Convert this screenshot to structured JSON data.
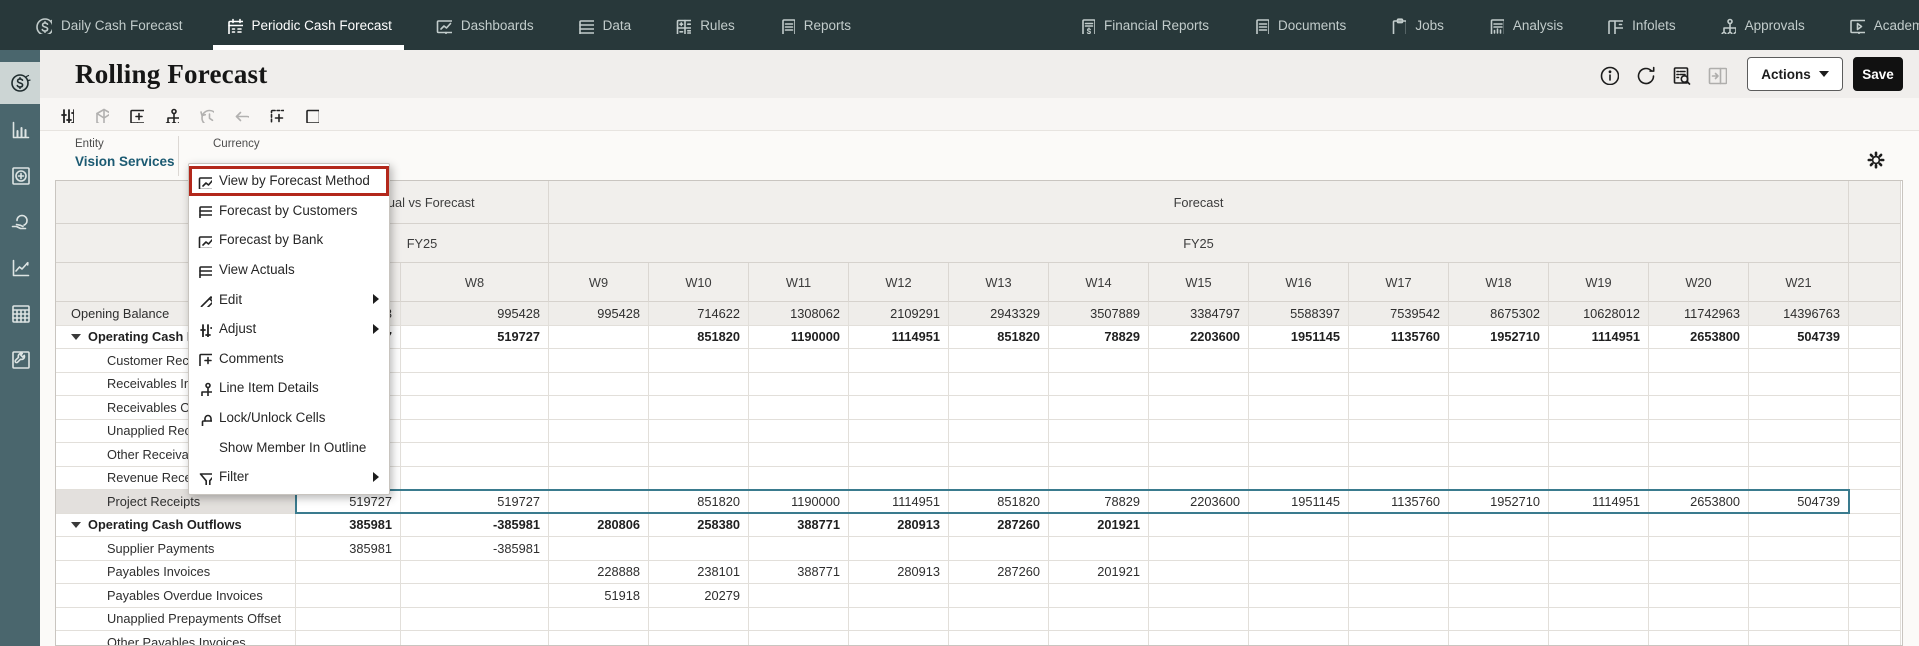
{
  "nav": {
    "items": [
      {
        "label": "Daily Cash Forecast",
        "icon": "coin",
        "active": false
      },
      {
        "label": "Periodic Cash Forecast",
        "icon": "calendar",
        "active": true
      },
      {
        "label": "Dashboards",
        "icon": "monitor",
        "active": false
      },
      {
        "label": "Data",
        "icon": "table",
        "active": false
      },
      {
        "label": "Rules",
        "icon": "gridcalc",
        "active": false
      },
      {
        "label": "Reports",
        "icon": "doc",
        "active": false
      },
      {
        "label": "Financial Reports",
        "icon": "docdollar",
        "active": false,
        "gap": true
      },
      {
        "label": "Documents",
        "icon": "doc",
        "active": false
      },
      {
        "label": "Jobs",
        "icon": "clipboard",
        "active": false
      },
      {
        "label": "Analysis",
        "icon": "docchart",
        "active": false
      },
      {
        "label": "Infolets",
        "icon": "infolet",
        "active": false
      },
      {
        "label": "Approvals",
        "icon": "org",
        "active": false
      },
      {
        "label": "Academy",
        "icon": "academy",
        "active": false
      }
    ]
  },
  "sidebar": {
    "items": [
      {
        "name": "cash-forecast",
        "icon": "coin",
        "active": true
      },
      {
        "name": "charts",
        "icon": "chartbars",
        "active": false
      },
      {
        "name": "add-panel",
        "icon": "circleplus",
        "active": false
      },
      {
        "name": "funding",
        "icon": "handflask",
        "active": false
      },
      {
        "name": "analytics",
        "icon": "trend",
        "active": false
      },
      {
        "name": "data-grid",
        "icon": "gridtable",
        "active": false
      },
      {
        "name": "tools",
        "icon": "wrench",
        "active": false
      }
    ]
  },
  "header": {
    "title": "Rolling Forecast",
    "actions_label": "Actions",
    "save_label": "Save",
    "icons": [
      {
        "name": "info-icon",
        "icon": "info",
        "disabled": false
      },
      {
        "name": "refresh-icon",
        "icon": "refresh",
        "disabled": false
      },
      {
        "name": "job-console-icon",
        "icon": "docsearch",
        "disabled": false
      },
      {
        "name": "open-panel-icon",
        "icon": "panel",
        "disabled": true
      }
    ]
  },
  "toolbar": {
    "buttons": [
      {
        "name": "adjust",
        "icon": "sliders",
        "disabled": false
      },
      {
        "name": "cube-refresh",
        "icon": "cube",
        "disabled": true
      },
      {
        "name": "add-comment",
        "icon": "commentplus",
        "disabled": false
      },
      {
        "name": "line-item-details",
        "icon": "org",
        "disabled": false
      },
      {
        "name": "history",
        "icon": "history",
        "disabled": true
      },
      {
        "name": "undo",
        "icon": "undo",
        "disabled": true
      },
      {
        "name": "freeze-grid",
        "icon": "gridplus",
        "disabled": false
      },
      {
        "name": "layout",
        "icon": "layout",
        "disabled": false
      }
    ]
  },
  "pov": {
    "entity_label": "Entity",
    "entity_value": "Vision Services",
    "currency_label": "Currency"
  },
  "context_menu": {
    "items": [
      {
        "label": "View by Forecast Method",
        "icon": "monitor",
        "submenu": false,
        "highlighted": true
      },
      {
        "label": "Forecast by Customers",
        "icon": "table",
        "submenu": false
      },
      {
        "label": "Forecast by Bank",
        "icon": "monitor",
        "submenu": false
      },
      {
        "label": "View Actuals",
        "icon": "table",
        "submenu": false
      },
      {
        "label": "Edit",
        "icon": "pencil",
        "submenu": true
      },
      {
        "label": "Adjust",
        "icon": "sliders",
        "submenu": true
      },
      {
        "label": "Comments",
        "icon": "commentplus",
        "submenu": false
      },
      {
        "label": "Line Item Details",
        "icon": "org",
        "submenu": false
      },
      {
        "label": "Lock/Unlock Cells",
        "icon": "lock",
        "submenu": false
      },
      {
        "label": "Show Member In Outline",
        "icon": "",
        "submenu": false
      },
      {
        "label": "Filter",
        "icon": "funnel",
        "submenu": true
      }
    ],
    "highlight_color": "#b3281b"
  },
  "grid": {
    "group_headers": {
      "actual_vs_forecast": "Actual vs Forecast",
      "forecast": "Forecast"
    },
    "year_headers": {
      "left": "FY25",
      "right": "FY25"
    },
    "week_columns": [
      "",
      "W8",
      "W9",
      "W10",
      "W11",
      "W12",
      "W13",
      "W14",
      "W15",
      "W16",
      "W17",
      "W18",
      "W19",
      "W20",
      "W21"
    ],
    "selection_color": "#3a7b8e",
    "rows": [
      {
        "label": "Opening Balance",
        "indent": 0,
        "bold": false,
        "expander": false,
        "gray": true,
        "values": [
          "3",
          "995428",
          "995428",
          "714622",
          "1308062",
          "2109291",
          "2943329",
          "3507889",
          "3384797",
          "5588397",
          "7539542",
          "8675302",
          "10628012",
          "11742963",
          "14396763"
        ]
      },
      {
        "label": "Operating Cash Inflows",
        "indent": 0,
        "bold": true,
        "expander": true,
        "values": [
          "519727",
          "519727",
          "",
          "851820",
          "1190000",
          "1114951",
          "851820",
          "78829",
          "2203600",
          "1951145",
          "1135760",
          "1952710",
          "1114951",
          "2653800",
          "504739"
        ]
      },
      {
        "label": "Customer Receipts",
        "indent": 1,
        "values": [
          "",
          "",
          "",
          "",
          "",
          "",
          "",
          "",
          "",
          "",
          "",
          "",
          "",
          "",
          ""
        ]
      },
      {
        "label": "Receivables Invoices",
        "indent": 1,
        "values": [
          "",
          "",
          "",
          "",
          "",
          "",
          "",
          "",
          "",
          "",
          "",
          "",
          "",
          "",
          ""
        ]
      },
      {
        "label": "Receivables Overdue Invoices",
        "indent": 1,
        "values": [
          "",
          "",
          "",
          "",
          "",
          "",
          "",
          "",
          "",
          "",
          "",
          "",
          "",
          "",
          ""
        ]
      },
      {
        "label": "Unapplied Receipts",
        "indent": 1,
        "values": [
          "",
          "",
          "",
          "",
          "",
          "",
          "",
          "",
          "",
          "",
          "",
          "",
          "",
          "",
          ""
        ]
      },
      {
        "label": "Other Receivables",
        "indent": 1,
        "values": [
          "",
          "",
          "",
          "",
          "",
          "",
          "",
          "",
          "",
          "",
          "",
          "",
          "",
          "",
          ""
        ]
      },
      {
        "label": "Revenue Receipts",
        "indent": 1,
        "values": [
          "",
          "",
          "",
          "",
          "",
          "",
          "",
          "",
          "",
          "",
          "",
          "",
          "",
          "",
          ""
        ]
      },
      {
        "label": "Project Receipts",
        "indent": 1,
        "selected": true,
        "values": [
          "519727",
          "519727",
          "",
          "851820",
          "1190000",
          "1114951",
          "851820",
          "78829",
          "2203600",
          "1951145",
          "1135760",
          "1952710",
          "1114951",
          "2653800",
          "504739"
        ]
      },
      {
        "label": "Operating Cash Outflows",
        "indent": 0,
        "bold": true,
        "expander": true,
        "values": [
          "385981",
          "-385981",
          "280806",
          "258380",
          "388771",
          "280913",
          "287260",
          "201921",
          "",
          "",
          "",
          "",
          "",
          "",
          ""
        ]
      },
      {
        "label": "Supplier Payments",
        "indent": 1,
        "values": [
          "385981",
          "-385981",
          "",
          "",
          "",
          "",
          "",
          "",
          "",
          "",
          "",
          "",
          "",
          "",
          ""
        ]
      },
      {
        "label": "Payables Invoices",
        "indent": 1,
        "values": [
          "",
          "",
          "228888",
          "238101",
          "388771",
          "280913",
          "287260",
          "201921",
          "",
          "",
          "",
          "",
          "",
          "",
          ""
        ]
      },
      {
        "label": "Payables Overdue Invoices",
        "indent": 1,
        "values": [
          "",
          "",
          "51918",
          "20279",
          "",
          "",
          "",
          "",
          "",
          "",
          "",
          "",
          "",
          "",
          ""
        ]
      },
      {
        "label": "Unapplied Prepayments Offset",
        "indent": 1,
        "values": [
          "",
          "",
          "",
          "",
          "",
          "",
          "",
          "",
          "",
          "",
          "",
          "",
          "",
          "",
          ""
        ]
      },
      {
        "label": "Other Payables Invoices",
        "indent": 1,
        "values": [
          "",
          "",
          "",
          "",
          "",
          "",
          "",
          "",
          "",
          "",
          "",
          "",
          "",
          "",
          ""
        ]
      }
    ]
  }
}
